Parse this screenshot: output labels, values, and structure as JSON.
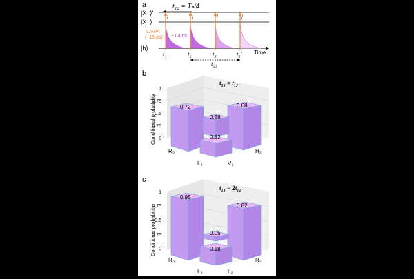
{
  "panel_a": {
    "label": "a",
    "t12_label": "t₁₂ = Tₕ/4",
    "state_x_prime": "|X⁺⟩'",
    "state_x": "|X⁺⟩",
    "state_h": "|h⟩",
    "pulse_label_line1": "LA-PA",
    "pulse_label_line2": "(~15 ps)",
    "decay_label": "~1.4 ns",
    "time_label": "Time",
    "t_labels": [
      "t₁",
      "t₂",
      "t₃",
      "t₃'"
    ],
    "t23_label": "t₂₃",
    "colors": {
      "pulse": "#f0883a",
      "decay": "#b43cd2",
      "axis": "#000000"
    }
  },
  "panel_b": {
    "label": "b",
    "title": "t₂₃ = t₁₂",
    "ylabel": "Conditional probability",
    "yticks": [
      "0",
      "0.25",
      "0.5",
      "0.75",
      "1"
    ],
    "axis_labels": [
      "R₃",
      "L₃",
      "V₂",
      "H₂"
    ],
    "bars": [
      {
        "name": "R3H2",
        "value": 0.72,
        "label": "0.72"
      },
      {
        "name": "L3V2",
        "value": 0.32,
        "label": "0.32"
      },
      {
        "name": "mid",
        "value": 0.28,
        "label": "0.28"
      },
      {
        "name": "R3V2",
        "value": 0.68,
        "label": "0.68"
      }
    ]
  },
  "panel_c": {
    "label": "c",
    "title": "t₂₃ = 2t₁₂",
    "ylabel": "Conditional probability",
    "yticks": [
      "0",
      "0.25",
      "0.5",
      "0.75",
      "1"
    ],
    "axis_labels": [
      "R₃",
      "L₃",
      "L₂",
      "R₂"
    ],
    "bars": [
      {
        "name": "R3R2",
        "value": 0.95,
        "label": "0.95"
      },
      {
        "name": "mid",
        "value": 0.05,
        "label": "0.05"
      },
      {
        "name": "L3L2",
        "value": 0.18,
        "label": "0.18"
      },
      {
        "name": "R3L2",
        "value": 0.82,
        "label": "0.82"
      }
    ]
  },
  "colors": {
    "bar_face": "#c9a0ef",
    "bar_top": "#e6b6f7",
    "bar_edge": "#6aa8d8",
    "wall": "#e8e8e8"
  }
}
